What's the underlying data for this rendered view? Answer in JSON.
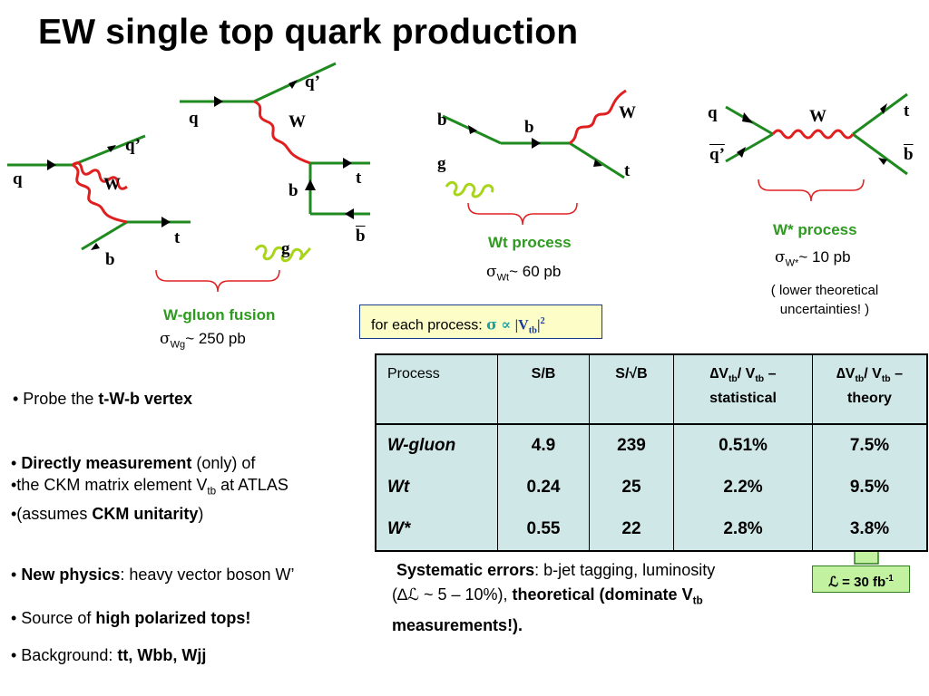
{
  "title": "EW single top quark production",
  "diagrams": {
    "wg_left": {
      "q": "q",
      "qprime": "q’",
      "w": "W",
      "t": "t",
      "b": "b"
    },
    "wg_right": {
      "q": "q",
      "qprime": "q’",
      "w": "W",
      "b": "b",
      "t": "t",
      "bbar": "b",
      "g": "g"
    },
    "wt": {
      "b_in": "b",
      "g": "g",
      "b_prop": "b",
      "w": "W",
      "t": "t"
    },
    "wstar": {
      "q": "q",
      "qbar": "q’",
      "w": "W",
      "t": "t",
      "bbar": "b"
    }
  },
  "processes": {
    "wg": {
      "name": "W-gluon fusion",
      "sigma": "σ",
      "sub": "Wg",
      "value": "~ 250 pb"
    },
    "wt": {
      "name": "Wt process",
      "sigma": "σ",
      "sub": "Wt",
      "value": "~ 60 pb"
    },
    "wstar": {
      "name": "W* process",
      "sigma": "σ",
      "sub": "W*",
      "value": "~ 10 pb",
      "note_line1": "( lower theoretical",
      "note_line2": "uncertainties! )"
    }
  },
  "each_process": {
    "label": "for each process: ",
    "sigma": "σ",
    "prop": "∝",
    "ckm": "|V",
    "ckm_sub": "tb",
    "ckm_end": "|",
    "power": "2"
  },
  "table": {
    "headers": {
      "process": "Process",
      "sb": "S/B",
      "ssqrtb": "S/√B",
      "stat_a": "∆V",
      "stat_sub1": "tb",
      "stat_b": "/ V",
      "stat_sub2": "tb",
      "stat_c": " –",
      "stat_d": "statistical",
      "theo_a": "∆V",
      "theo_sub1": "tb",
      "theo_b": "/ V",
      "theo_sub2": "tb",
      "theo_c": " –",
      "theo_d": "theory"
    },
    "rows": [
      {
        "process": "W-gluon",
        "sb": "4.9",
        "ssqrtb": "239",
        "stat": "0.51%",
        "theory": "7.5%"
      },
      {
        "process": "Wt",
        "sb": "0.24",
        "ssqrtb": "25",
        "stat": "2.2%",
        "theory": "9.5%"
      },
      {
        "process": "W*",
        "sb": "0.55",
        "ssqrtb": "22",
        "stat": "2.8%",
        "theory": "3.8%"
      }
    ]
  },
  "bullets": {
    "probe_a": "• Probe the ",
    "probe_b": "t-W-b vertex",
    "direct_a": "• ",
    "direct_b": "Directly measurement",
    "direct_c": " (only) of",
    "ckm_a": "•the CKM matrix element V",
    "ckm_sub": "tb",
    "ckm_b": " at ATLAS",
    "assume_a": "•(assumes ",
    "assume_b": "CKM unitarity",
    "assume_c": ")",
    "newphys_a": "• ",
    "newphys_b": "New physics",
    "newphys_c": ": heavy vector boson W’",
    "source_a": "• Source of ",
    "source_b": "high polarized tops!",
    "bkg_a": "• Background: ",
    "bkg_b": "tt, Wbb, Wjj"
  },
  "systematics": {
    "a": "Systematic errors",
    "b": ": b-jet tagging, luminosity",
    "c": "(∆ℒ ~ 5 – 10%), ",
    "d": "theoretical (dominate V",
    "d_sub": "tb",
    "e": "measurements!)."
  },
  "luminosity": {
    "label": "ℒ = 30 fb",
    "power": "-1"
  },
  "colors": {
    "line": "#1f8a1f",
    "w_boson": "#e02020",
    "gluon": "#a8d41a",
    "bracket": "#e02020",
    "green_text": "#2e9a1f",
    "table_bg": "#cfe7e7",
    "box_bg": "#fdfdc8",
    "arrow_bg": "#c2f2a0"
  }
}
